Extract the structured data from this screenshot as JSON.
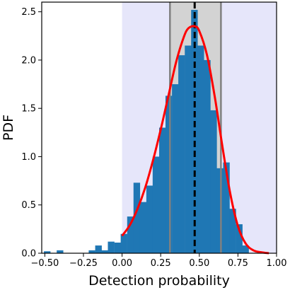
{
  "chart_data": {
    "type": "bar",
    "xlabel": "Detection probability",
    "ylabel": "PDF",
    "xlim": [
      -0.52,
      1.0
    ],
    "ylim": [
      0,
      2.6
    ],
    "xticks": [
      "−0.50",
      "−0.25",
      "0.00",
      "0.25",
      "0.50",
      "0.75",
      "1.00"
    ],
    "xtick_values": [
      -0.5,
      -0.25,
      0.0,
      0.25,
      0.5,
      0.75,
      1.0
    ],
    "yticks": [
      "0.0",
      "0.5",
      "1.0",
      "1.5",
      "2.0",
      "2.5"
    ],
    "ytick_values": [
      0.0,
      0.5,
      1.0,
      1.5,
      2.0,
      2.5
    ],
    "histogram": {
      "bin_width": 0.0414,
      "bin_starts": [
        -0.506,
        -0.423,
        -0.216,
        -0.174,
        -0.133,
        -0.092,
        -0.05,
        -0.009,
        0.033,
        0.074,
        0.116,
        0.157,
        0.198,
        0.24,
        0.281,
        0.323,
        0.364,
        0.406,
        0.447,
        0.488,
        0.53,
        0.571,
        0.613,
        0.654,
        0.695,
        0.737,
        0.778
      ],
      "heights": [
        0.02,
        0.03,
        0.03,
        0.08,
        0.03,
        0.12,
        0.11,
        0.2,
        0.38,
        0.73,
        0.53,
        0.7,
        1.0,
        1.3,
        1.63,
        1.75,
        2.05,
        2.15,
        2.52,
        2.15,
        2.0,
        1.48,
        0.88,
        0.94,
        0.46,
        0.3,
        0.08
      ],
      "color": "#1f77b4"
    },
    "kde_curve": {
      "color": "#ff0000",
      "x": [
        0.0,
        0.05,
        0.1,
        0.15,
        0.2,
        0.25,
        0.3,
        0.35,
        0.4,
        0.43,
        0.47,
        0.5,
        0.55,
        0.6,
        0.65,
        0.7,
        0.75,
        0.8,
        0.85,
        0.9,
        0.95
      ],
      "y": [
        0.18,
        0.29,
        0.46,
        0.68,
        0.96,
        1.28,
        1.63,
        1.98,
        2.24,
        2.33,
        2.35,
        2.3,
        2.05,
        1.62,
        1.1,
        0.62,
        0.28,
        0.1,
        0.03,
        0.01,
        0.0
      ]
    },
    "median_line": {
      "x": 0.47,
      "style": "dashed",
      "color": "#000000"
    },
    "interval_lines": {
      "x": [
        0.31,
        0.64
      ],
      "color": "#808080"
    },
    "interval_fill": {
      "x": [
        0.31,
        0.64
      ],
      "color": "#d3d3d3"
    },
    "domain_fill": {
      "x": [
        0.0,
        1.0
      ],
      "color": "#e6e6fa"
    }
  }
}
